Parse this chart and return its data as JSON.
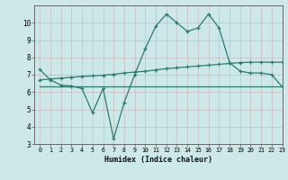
{
  "x": [
    0,
    1,
    2,
    3,
    4,
    5,
    6,
    7,
    8,
    9,
    10,
    11,
    12,
    13,
    14,
    15,
    16,
    17,
    18,
    19,
    20,
    21,
    22,
    23
  ],
  "y_main": [
    7.3,
    6.7,
    6.4,
    6.35,
    6.2,
    4.8,
    6.2,
    3.3,
    5.4,
    7.0,
    8.5,
    9.8,
    10.5,
    10.0,
    9.5,
    9.7,
    10.5,
    9.7,
    7.7,
    7.2,
    7.1,
    7.1,
    7.0,
    6.3
  ],
  "y_upper": [
    6.7,
    6.75,
    6.8,
    6.85,
    6.9,
    6.93,
    6.97,
    7.02,
    7.1,
    7.15,
    7.2,
    7.28,
    7.35,
    7.4,
    7.45,
    7.5,
    7.55,
    7.6,
    7.65,
    7.7,
    7.72,
    7.72,
    7.72,
    7.72
  ],
  "y_lower": [
    6.3,
    6.3,
    6.3,
    6.3,
    6.3,
    6.3,
    6.3,
    6.3,
    6.3,
    6.3,
    6.3,
    6.3,
    6.3,
    6.3,
    6.3,
    6.3,
    6.3,
    6.3,
    6.3,
    6.3,
    6.3,
    6.3,
    6.3,
    6.3
  ],
  "line_color": "#2a7d6e",
  "bg_color": "#cce8e8",
  "grid_color": "#b0d8d8",
  "xlabel": "Humidex (Indice chaleur)",
  "ylim": [
    3,
    11
  ],
  "xlim": [
    -0.5,
    23
  ],
  "yticks": [
    3,
    4,
    5,
    6,
    7,
    8,
    9,
    10
  ],
  "xticks": [
    0,
    1,
    2,
    3,
    4,
    5,
    6,
    7,
    8,
    9,
    10,
    11,
    12,
    13,
    14,
    15,
    16,
    17,
    18,
    19,
    20,
    21,
    22,
    23
  ]
}
